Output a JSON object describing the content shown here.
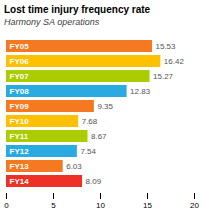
{
  "chart_data": {
    "type": "bar",
    "title": "Lost time injury frequency rate",
    "subtitle": "Harmony SA operations",
    "orientation": "horizontal",
    "categories": [
      "FY05",
      "FY06",
      "FY07",
      "FY08",
      "FY09",
      "FY10",
      "FY11",
      "FY12",
      "FY13",
      "FY14"
    ],
    "values": [
      15.53,
      16.42,
      15.27,
      12.83,
      9.35,
      7.68,
      8.67,
      7.54,
      6.03,
      8.09
    ],
    "colors": [
      "#F47920",
      "#FFC000",
      "#AACC00",
      "#29ABE2",
      "#F47920",
      "#FFC000",
      "#AACC00",
      "#29ABE2",
      "#F47920",
      "#EE3124"
    ],
    "xlim": [
      0,
      20
    ],
    "xticks": [
      0,
      5,
      10,
      15,
      20
    ],
    "grid": false,
    "data_labels": true,
    "tick_labels": "x"
  }
}
